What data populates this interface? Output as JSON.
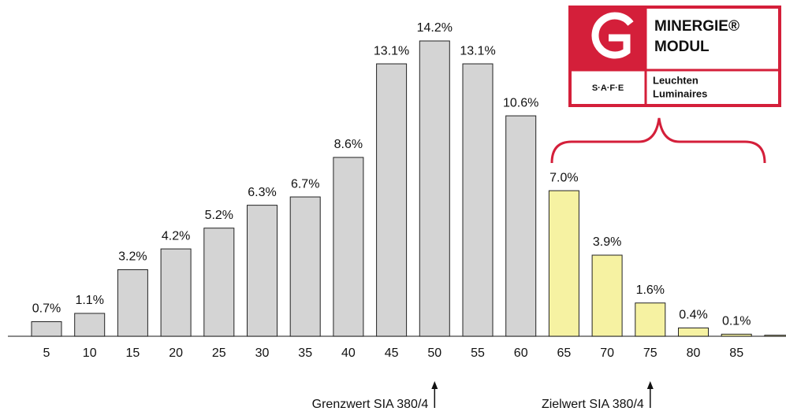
{
  "chart_data": {
    "type": "bar",
    "categories": [
      "5",
      "10",
      "15",
      "20",
      "25",
      "30",
      "35",
      "40",
      "45",
      "50",
      "55",
      "60",
      "65",
      "70",
      "75",
      "80",
      "85",
      null
    ],
    "values": [
      0.7,
      1.1,
      3.2,
      4.2,
      5.2,
      6.3,
      6.7,
      8.6,
      13.1,
      14.2,
      13.1,
      10.6,
      7.0,
      3.9,
      1.6,
      0.4,
      0.1,
      0.05
    ],
    "value_labels": [
      "0.7%",
      "1.1%",
      "3.2%",
      "4.2%",
      "5.2%",
      "6.3%",
      "6.7%",
      "8.6%",
      "13.1%",
      "14.2%",
      "13.1%",
      "10.6%",
      "7.0%",
      "3.9%",
      "1.6%",
      "0.4%",
      "0.1%",
      null
    ],
    "colors": [
      "#d4d4d4",
      "#d4d4d4",
      "#d4d4d4",
      "#d4d4d4",
      "#d4d4d4",
      "#d4d4d4",
      "#d4d4d4",
      "#d4d4d4",
      "#d4d4d4",
      "#d4d4d4",
      "#d4d4d4",
      "#d4d4d4",
      "#f6f2a2",
      "#f6f2a2",
      "#f6f2a2",
      "#f6f2a2",
      "#f6f2a2",
      "#f6f2a2"
    ],
    "annotations": [
      {
        "text": "Grenzwert SIA 380/4",
        "category": 9
      },
      {
        "text": "Zielwert SIA 380/4",
        "category": 14
      }
    ],
    "logo": {
      "brand": "MINERGIE®",
      "module": "MODUL",
      "safe": "S·A·F·E",
      "line1": "Leuchten",
      "line2": "Luminaires"
    }
  }
}
